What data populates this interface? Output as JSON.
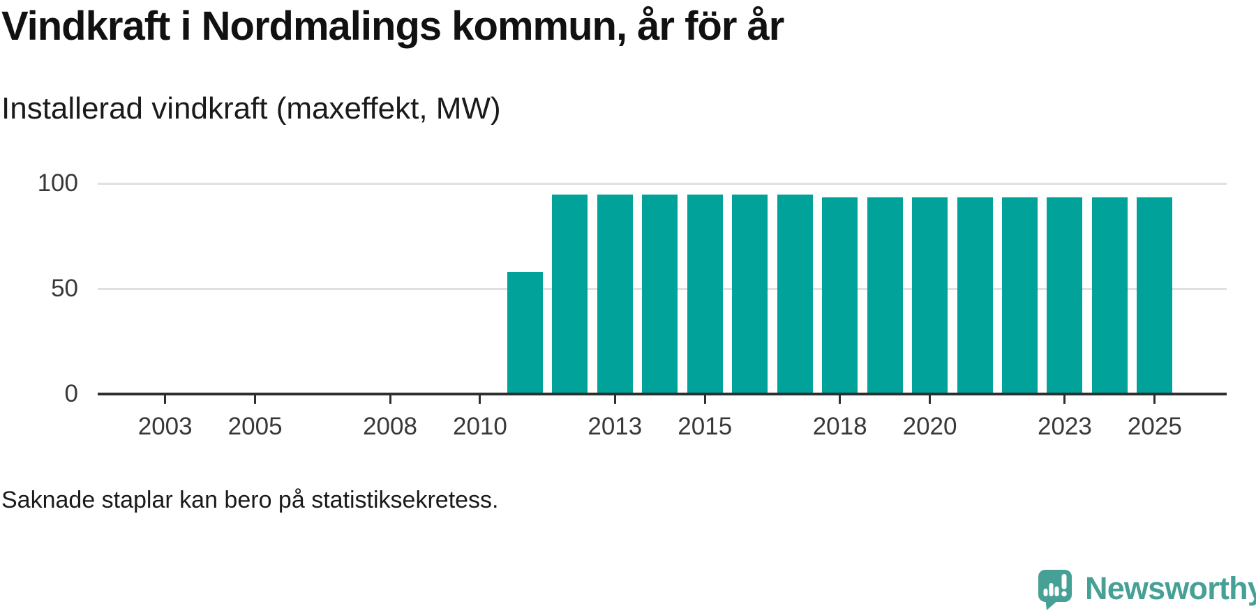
{
  "page": {
    "brand": {
      "name": "Newsworthy",
      "icon": "newsworthy-speech-bubble-bar-chart-icon",
      "color": "#46a096"
    }
  },
  "chart_data": {
    "type": "bar",
    "title": "Vindkraft i Nordmalings kommun, år för år",
    "subtitle": "Installerad vindkraft (maxeffekt, MW)",
    "note": "Saknade staplar kan bero på statistiksekretess.",
    "unit": "MW",
    "x": [
      2011,
      2012,
      2013,
      2014,
      2015,
      2016,
      2017,
      2018,
      2019,
      2020,
      2021,
      2022,
      2023,
      2024,
      2025
    ],
    "values": [
      58,
      94.7,
      94.7,
      94.7,
      94.7,
      94.7,
      94.7,
      93.4,
      93.4,
      93.4,
      93.4,
      93.4,
      93.4,
      93.4,
      93.4
    ],
    "missing_years": [
      2002,
      2003,
      2004,
      2005,
      2006,
      2007,
      2008,
      2009,
      2010
    ],
    "x_tick_years": [
      2003,
      2005,
      2008,
      2010,
      2013,
      2015,
      2018,
      2020,
      2023,
      2025
    ],
    "y_ticks": [
      0,
      50,
      100
    ],
    "ylim": [
      0,
      110
    ],
    "xlim": [
      2001.5,
      2026.6
    ],
    "grid": "horizontal-only",
    "legend": "none",
    "bar_color": "#00a29a",
    "grid_color": "#e0e0e0",
    "axis_color": "#2e2e2e",
    "tick_label_color": "#383838"
  }
}
